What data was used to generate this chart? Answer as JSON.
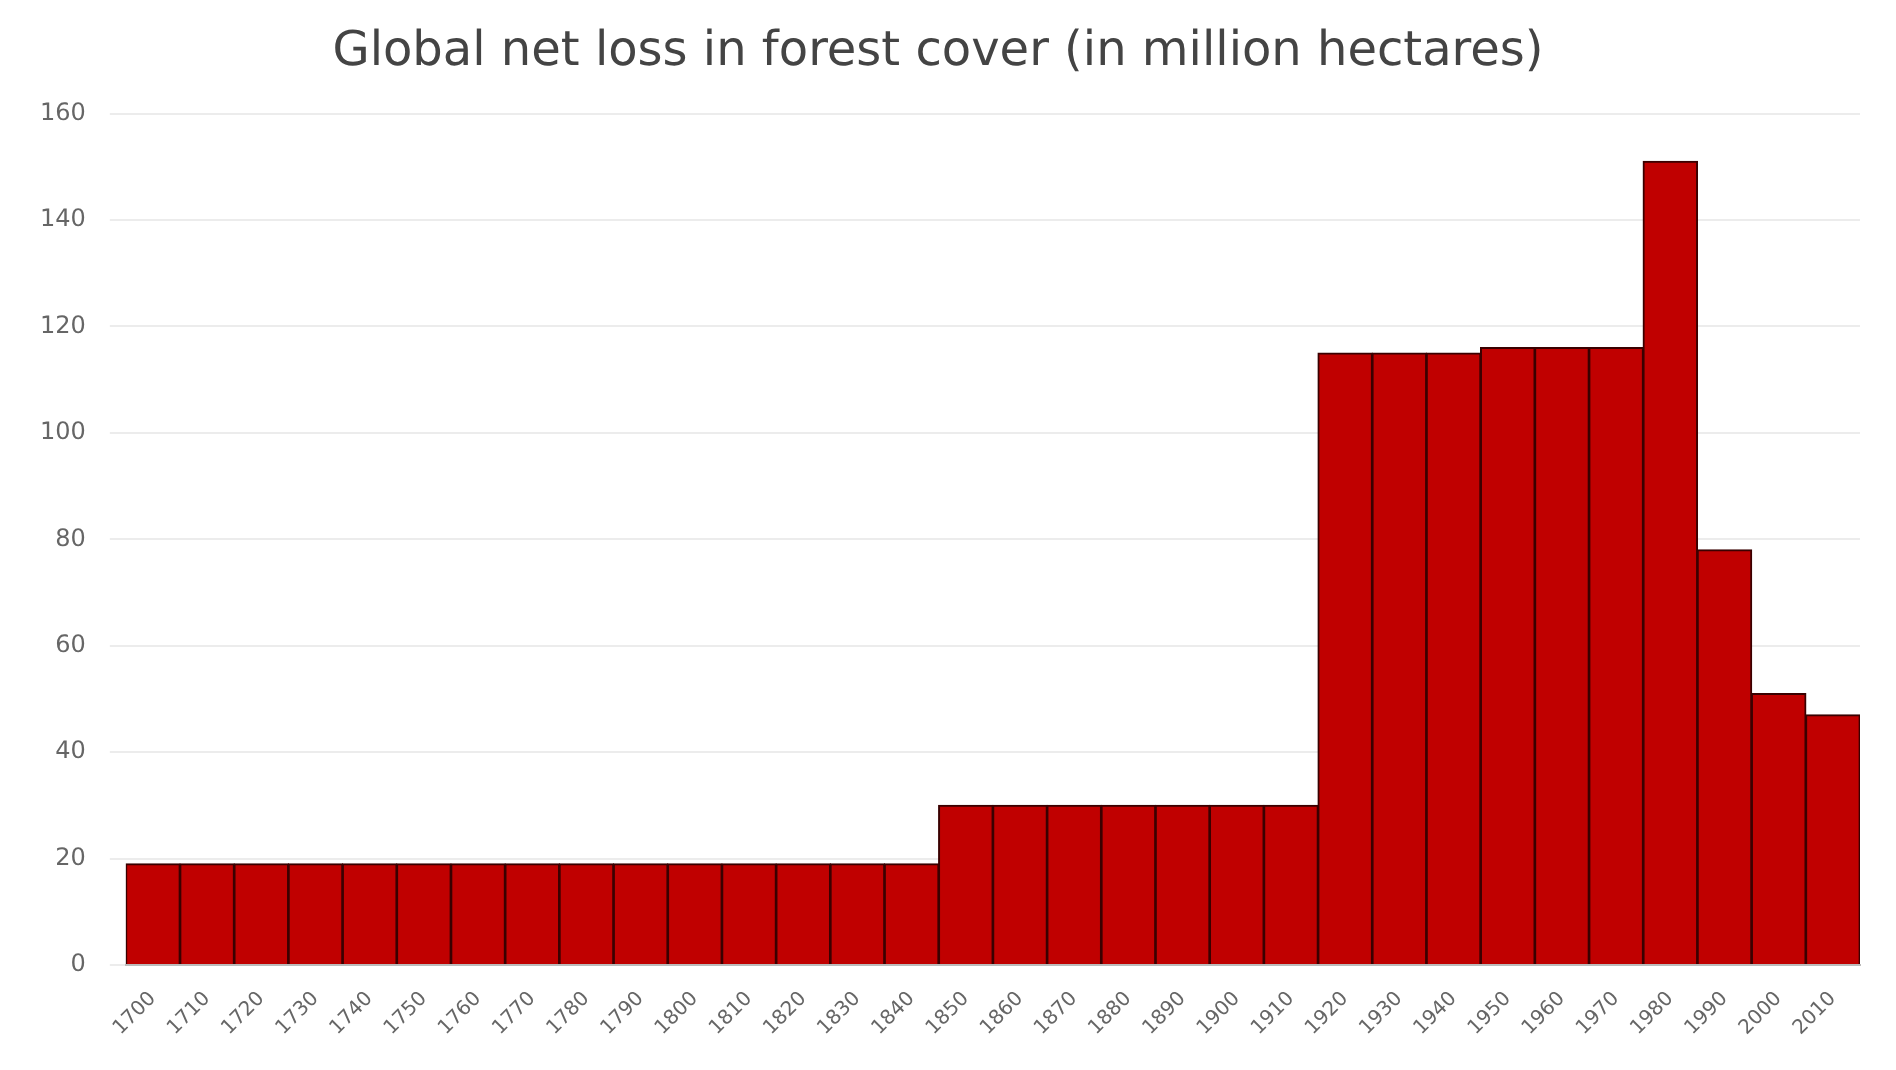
{
  "chart_data": {
    "type": "bar",
    "title": "Global net loss in forest cover (in million hectares)",
    "categories": [
      "1700",
      "1710",
      "1720",
      "1730",
      "1740",
      "1750",
      "1760",
      "1770",
      "1780",
      "1790",
      "1800",
      "1810",
      "1820",
      "1830",
      "1840",
      "1850",
      "1860",
      "1870",
      "1880",
      "1890",
      "1900",
      "1910",
      "1920",
      "1930",
      "1940",
      "1950",
      "1960",
      "1970",
      "1980",
      "1990",
      "2000",
      "2010"
    ],
    "values": [
      19,
      19,
      19,
      19,
      19,
      19,
      19,
      19,
      19,
      19,
      19,
      19,
      19,
      19,
      19,
      30,
      30,
      30,
      30,
      30,
      30,
      30,
      115,
      115,
      115,
      116,
      116,
      116,
      151,
      78,
      51,
      47
    ],
    "color": "#c00000",
    "ylim": [
      0,
      160
    ],
    "yticks": [
      0,
      20,
      40,
      60,
      80,
      100,
      120,
      140,
      160
    ],
    "grid": "y",
    "legend": false
  }
}
